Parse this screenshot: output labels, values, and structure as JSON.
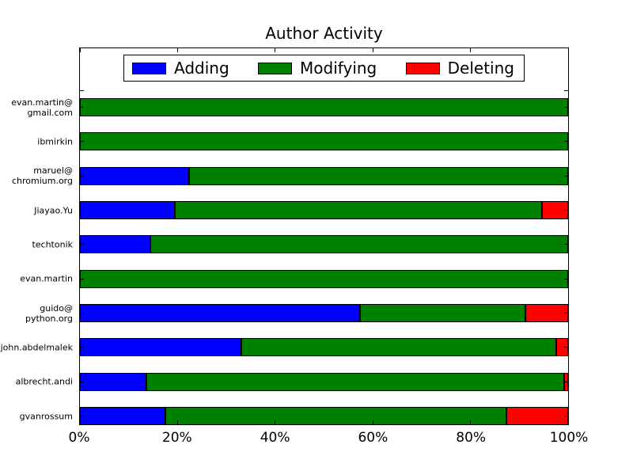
{
  "chart_data": {
    "type": "bar",
    "orientation": "horizontal",
    "stacked": true,
    "title": "Author Activity",
    "categories": [
      "evan.martin@gmail.com",
      "ibmirkin",
      "maruel@chromium.org",
      "Jiayao.Yu",
      "techtonik",
      "evan.martin",
      "guido@python.org",
      "john.abdelmalek",
      "albrecht.andi",
      "gvanrossum"
    ],
    "categories_display": [
      "evan.martin@\ngmail.com",
      "ibmirkin",
      "maruel@\nchromium.org",
      "Jiayao.Yu",
      "techtonik",
      "evan.martin",
      "guido@\npython.org",
      "john.abdelmalek",
      "albrecht.andi",
      "gvanrossum"
    ],
    "series": [
      {
        "name": "Adding",
        "color": "#0000ff",
        "values": [
          0,
          0,
          22.3,
          19.4,
          14.5,
          0,
          57.4,
          33.1,
          13.6,
          17.5
        ]
      },
      {
        "name": "Modifying",
        "color": "#008000",
        "values": [
          100,
          100,
          77.7,
          75.3,
          85.5,
          100,
          33.8,
          64.4,
          85.6,
          69.8
        ]
      },
      {
        "name": "Deleting",
        "color": "#ff0000",
        "values": [
          0,
          0,
          0,
          5.3,
          0,
          0,
          8.8,
          2.5,
          0.8,
          12.7
        ]
      }
    ],
    "x_tick_values": [
      0,
      20,
      40,
      60,
      80,
      100
    ],
    "x_tick_labels": [
      "0%",
      "20%",
      "40%",
      "60%",
      "80%",
      "100%"
    ],
    "xlim": [
      0,
      100
    ],
    "units": "percent",
    "grid": false,
    "legend_position": "upper center inside plot"
  }
}
